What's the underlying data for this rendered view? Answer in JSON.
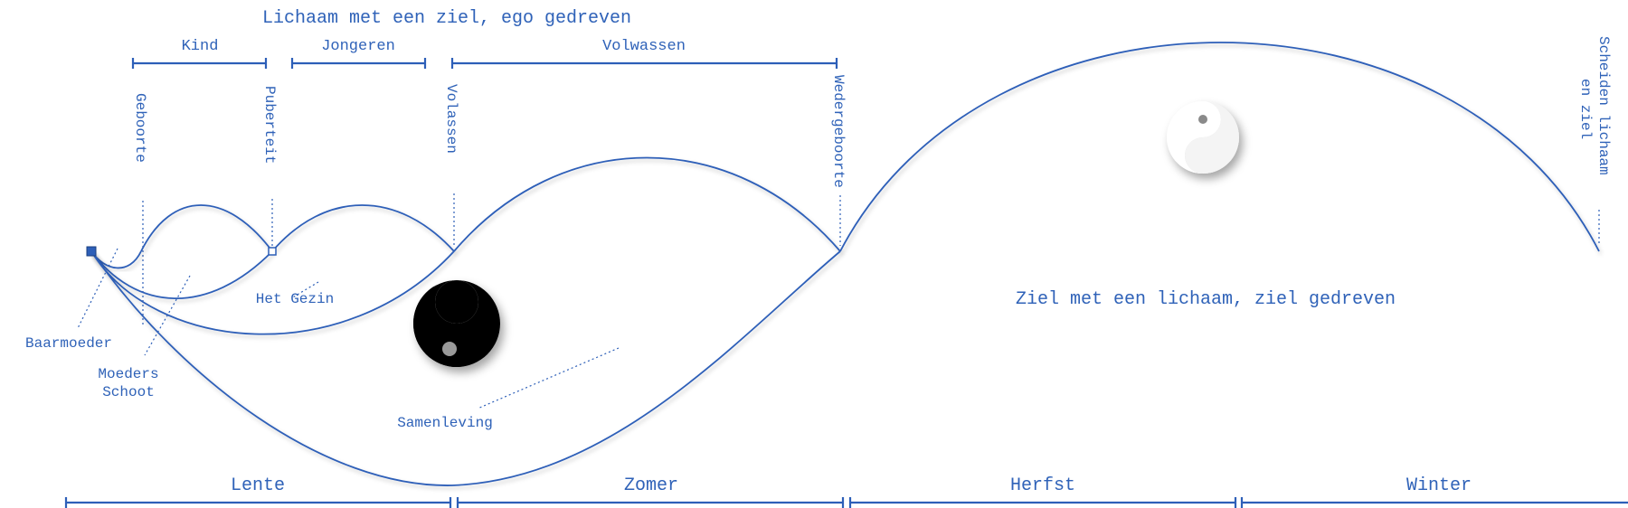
{
  "header": {
    "title": "Lichaam met een ziel, ego gedreven"
  },
  "phases": [
    {
      "id": "kind",
      "label": "Kind"
    },
    {
      "id": "jongeren",
      "label": "Jongeren"
    },
    {
      "id": "volwassen",
      "label": "Volwassen"
    }
  ],
  "milestones": [
    {
      "id": "geboorte",
      "label": "Geboorte"
    },
    {
      "id": "puberteit",
      "label": "Puberteit"
    },
    {
      "id": "volassen",
      "label": "Volassen"
    },
    {
      "id": "wedergeboorte",
      "label": "Wedergeboorte"
    },
    {
      "id": "scheiden",
      "label": "Scheiden lichaam",
      "label2": "en ziel"
    }
  ],
  "annotations": {
    "baarmoeder": "Baarmoeder",
    "moeders_line1": "Moeders",
    "moeders_line2": "Schoot",
    "het_gezin": "Het Gezin",
    "samenleving": "Samenleving",
    "ziel_label": "Ziel met een lichaam, ziel gedreven"
  },
  "seasons": [
    {
      "id": "lente",
      "label": "Lente"
    },
    {
      "id": "zomer",
      "label": "Zomer"
    },
    {
      "id": "herfst",
      "label": "Herfst"
    },
    {
      "id": "winter",
      "label": "Winter"
    }
  ],
  "symbols": {
    "large": "yin-yang-icon",
    "small": "yin-yang-icon"
  },
  "colors": {
    "line": "#2d5fb8",
    "text": "#2f62b8",
    "background": "#ffffff"
  }
}
